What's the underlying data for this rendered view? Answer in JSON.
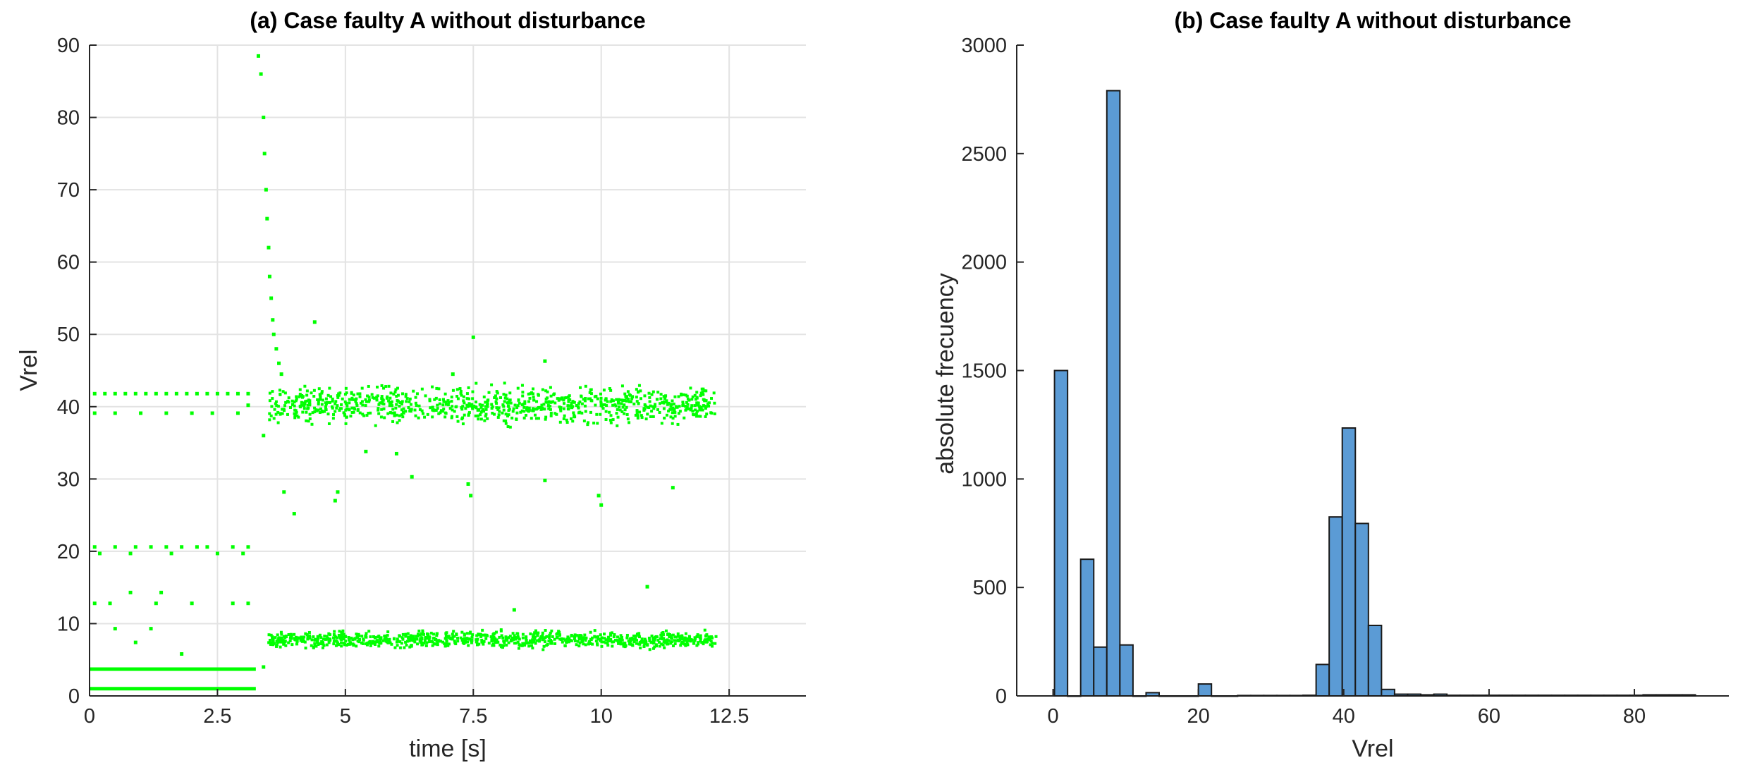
{
  "chart_data": [
    {
      "type": "scatter",
      "title": "(a) Case faulty A without disturbance",
      "xlabel": "time [s]",
      "ylabel": "Vrel",
      "xlim": [
        0,
        14
      ],
      "ylim": [
        0,
        90
      ],
      "xticks": [
        0,
        2.5,
        5,
        7.5,
        10,
        12.5
      ],
      "xtick_labels": [
        "0",
        "2.5",
        "5",
        "7.5",
        "10",
        "12.5"
      ],
      "yticks": [
        0,
        10,
        20,
        30,
        40,
        50,
        60,
        70,
        80,
        90
      ],
      "ytick_labels": [
        "0",
        "10",
        "20",
        "30",
        "40",
        "50",
        "60",
        "70",
        "80",
        "90"
      ],
      "grid": true,
      "marker_color": "#00ff00",
      "points": [
        [
          0.1,
          41.8
        ],
        [
          0.3,
          41.8
        ],
        [
          0.5,
          41.8
        ],
        [
          0.7,
          41.8
        ],
        [
          0.9,
          41.8
        ],
        [
          1.1,
          41.8
        ],
        [
          1.3,
          41.8
        ],
        [
          1.5,
          41.8
        ],
        [
          1.7,
          41.8
        ],
        [
          1.9,
          41.8
        ],
        [
          2.1,
          41.8
        ],
        [
          2.3,
          41.8
        ],
        [
          2.5,
          41.8
        ],
        [
          2.7,
          41.8
        ],
        [
          2.9,
          41.8
        ],
        [
          3.1,
          41.8
        ],
        [
          0.1,
          39.1
        ],
        [
          0.5,
          39.1
        ],
        [
          1.0,
          39.1
        ],
        [
          1.5,
          39.1
        ],
        [
          2.0,
          39.1
        ],
        [
          2.4,
          39.1
        ],
        [
          2.9,
          39.1
        ],
        [
          3.1,
          40.2
        ],
        [
          0.1,
          20.6
        ],
        [
          0.2,
          19.7
        ],
        [
          0.5,
          20.6
        ],
        [
          0.9,
          20.6
        ],
        [
          1.2,
          20.6
        ],
        [
          1.5,
          20.6
        ],
        [
          1.8,
          20.6
        ],
        [
          2.1,
          20.6
        ],
        [
          2.3,
          20.6
        ],
        [
          2.8,
          20.6
        ],
        [
          3.1,
          20.6
        ],
        [
          0.8,
          19.7
        ],
        [
          1.6,
          19.7
        ],
        [
          2.5,
          19.7
        ],
        [
          3.0,
          19.7
        ],
        [
          0.1,
          12.8
        ],
        [
          0.4,
          12.8
        ],
        [
          1.3,
          12.8
        ],
        [
          2.0,
          12.8
        ],
        [
          2.8,
          12.8
        ],
        [
          3.1,
          12.8
        ],
        [
          0.8,
          14.3
        ],
        [
          1.4,
          14.3
        ],
        [
          0.9,
          7.4
        ],
        [
          1.8,
          5.8
        ],
        [
          0.5,
          9.3
        ],
        [
          1.2,
          9.3
        ],
        [
          3.3,
          88.5
        ],
        [
          3.35,
          86.0
        ],
        [
          3.4,
          80.0
        ],
        [
          3.42,
          75.0
        ],
        [
          3.45,
          70.0
        ],
        [
          3.47,
          66.0
        ],
        [
          3.5,
          62.0
        ],
        [
          3.52,
          58.0
        ],
        [
          3.55,
          55.0
        ],
        [
          3.58,
          52.0
        ],
        [
          3.6,
          50.0
        ],
        [
          3.65,
          48.0
        ],
        [
          3.7,
          46.0
        ],
        [
          3.75,
          44.5
        ],
        [
          3.4,
          36.0
        ],
        [
          3.8,
          28.2
        ],
        [
          3.4,
          4.0
        ],
        [
          4.4,
          51.7
        ],
        [
          7.5,
          49.6
        ],
        [
          7.1,
          44.5
        ],
        [
          8.9,
          46.3
        ],
        [
          5.4,
          33.8
        ],
        [
          6.0,
          33.5
        ],
        [
          6.3,
          30.3
        ],
        [
          4.0,
          25.2
        ],
        [
          4.8,
          27.0
        ],
        [
          4.85,
          28.2
        ],
        [
          7.4,
          29.3
        ],
        [
          7.45,
          27.7
        ],
        [
          8.9,
          29.8
        ],
        [
          9.95,
          27.7
        ],
        [
          10.0,
          26.4
        ],
        [
          11.4,
          28.8
        ],
        [
          10.9,
          15.1
        ],
        [
          8.3,
          11.9
        ]
      ],
      "bands": [
        {
          "x_range": [
            0,
            3.25
          ],
          "y_values": [
            3.7,
            1.0
          ],
          "type": "line"
        },
        {
          "x_range": [
            3.5,
            12.25
          ],
          "y_center": 40.2,
          "y_spread": 2.2,
          "points": 900
        },
        {
          "x_range": [
            3.5,
            12.25
          ],
          "y_center": 7.8,
          "y_spread": 1.0,
          "points": 900
        }
      ]
    },
    {
      "type": "bar",
      "title": "(b) Case faulty A without disturbance",
      "xlabel": "Vrel",
      "ylabel": "absolute frecuency",
      "xlim": [
        -5,
        93
      ],
      "ylim": [
        0,
        3000
      ],
      "xticks": [
        0,
        20,
        40,
        60,
        80
      ],
      "xtick_labels": [
        "0",
        "20",
        "40",
        "60",
        "80"
      ],
      "yticks": [
        0,
        500,
        1000,
        1500,
        2000,
        2500,
        3000
      ],
      "ytick_labels": [
        "0",
        "500",
        "1000",
        "1500",
        "2000",
        "2500",
        "3000"
      ],
      "grid": false,
      "bar_color": "#5b9bd5",
      "bin_width": 1.8,
      "bin_start": 0.2,
      "values": [
        1500,
        0,
        630,
        225,
        2790,
        235,
        0,
        15,
        0,
        0,
        0,
        55,
        0,
        0,
        2,
        2,
        2,
        2,
        2,
        3,
        145,
        825,
        1235,
        795,
        325,
        30,
        8,
        8,
        5,
        8,
        3,
        3,
        3,
        3,
        3,
        3,
        3,
        3,
        3,
        3,
        3,
        3,
        3,
        3,
        3,
        5,
        5,
        5,
        5
      ]
    }
  ]
}
